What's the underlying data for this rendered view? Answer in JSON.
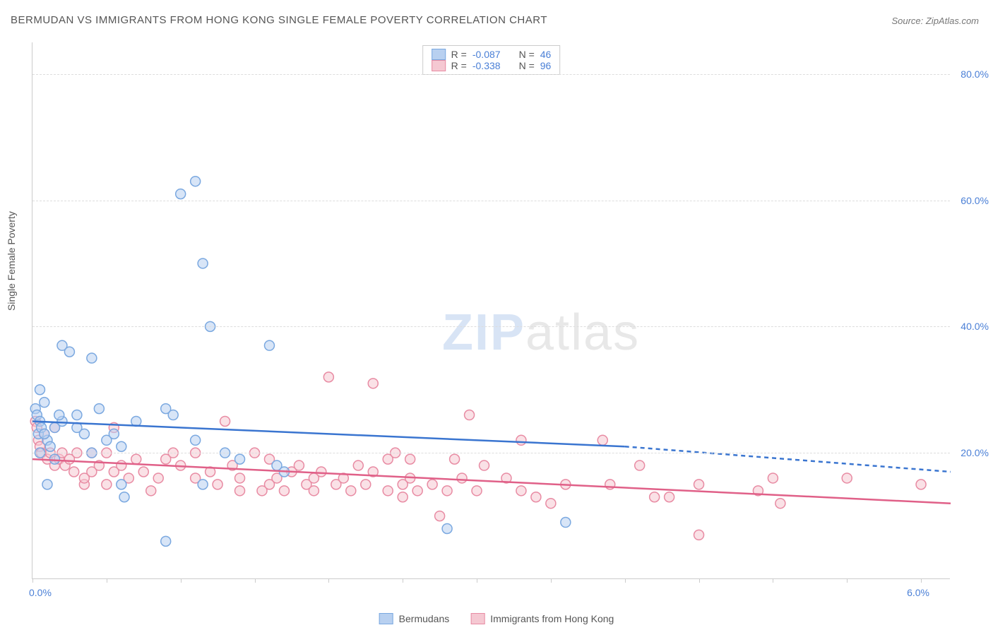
{
  "title": "BERMUDAN VS IMMIGRANTS FROM HONG KONG SINGLE FEMALE POVERTY CORRELATION CHART",
  "source": "Source: ZipAtlas.com",
  "watermark": {
    "bold": "ZIP",
    "rest": "atlas"
  },
  "y_axis_label": "Single Female Poverty",
  "chart": {
    "type": "scatter",
    "background_color": "#ffffff",
    "grid_color": "#dddddd",
    "axis_color": "#cccccc",
    "tick_label_color": "#4a7fd6",
    "text_color": "#555555",
    "xlim": [
      0,
      6.2
    ],
    "ylim": [
      0,
      85
    ],
    "x_ticks": [
      0,
      0.5,
      1.0,
      1.5,
      2.0,
      2.5,
      3.0,
      3.5,
      4.0,
      4.5,
      5.0,
      5.5,
      6.0
    ],
    "x_tick_labels_shown": {
      "0": "0.0%",
      "6.0": "6.0%"
    },
    "y_ticks": [
      20,
      40,
      60,
      80
    ],
    "y_tick_labels": [
      "20.0%",
      "40.0%",
      "60.0%",
      "80.0%"
    ],
    "marker_radius": 7,
    "marker_stroke_width": 1.5,
    "line_width": 2.5,
    "title_fontsize": 15,
    "label_fontsize": 14
  },
  "series": [
    {
      "name": "Bermudans",
      "color_fill": "#b8d0f0",
      "color_stroke": "#7aa8e0",
      "line_color": "#3a75d0",
      "R": "-0.087",
      "N": "46",
      "trend": {
        "x1": 0,
        "y1": 25,
        "x2": 4.0,
        "y2": 21,
        "x1_dash": 4.0,
        "y1_dash": 21,
        "x2_dash": 6.2,
        "y2_dash": 17
      },
      "points": [
        [
          0.02,
          27
        ],
        [
          0.03,
          26
        ],
        [
          0.04,
          23
        ],
        [
          0.05,
          25
        ],
        [
          0.06,
          24
        ],
        [
          0.05,
          30
        ],
        [
          0.1,
          22
        ],
        [
          0.12,
          21
        ],
        [
          0.15,
          24
        ],
        [
          0.08,
          28
        ],
        [
          0.1,
          15
        ],
        [
          0.2,
          37
        ],
        [
          0.25,
          36
        ],
        [
          0.2,
          25
        ],
        [
          0.3,
          26
        ],
        [
          0.35,
          23
        ],
        [
          0.4,
          35
        ],
        [
          0.5,
          22
        ],
        [
          0.55,
          23
        ],
        [
          0.6,
          21
        ],
        [
          0.6,
          15
        ],
        [
          0.62,
          13
        ],
        [
          0.7,
          25
        ],
        [
          0.9,
          27
        ],
        [
          0.9,
          6
        ],
        [
          0.95,
          26
        ],
        [
          1.0,
          61
        ],
        [
          1.1,
          22
        ],
        [
          1.15,
          15
        ],
        [
          1.15,
          50
        ],
        [
          1.1,
          63
        ],
        [
          1.2,
          40
        ],
        [
          1.3,
          20
        ],
        [
          1.4,
          19
        ],
        [
          1.6,
          37
        ],
        [
          1.65,
          18
        ],
        [
          1.7,
          17
        ],
        [
          2.8,
          8
        ],
        [
          3.6,
          9
        ],
        [
          0.05,
          20
        ],
        [
          0.3,
          24
        ],
        [
          0.4,
          20
        ],
        [
          0.15,
          19
        ],
        [
          0.45,
          27
        ],
        [
          0.08,
          23
        ],
        [
          0.18,
          26
        ]
      ]
    },
    {
      "name": "Immigrants from Hong Kong",
      "color_fill": "#f5c8d2",
      "color_stroke": "#e88ba3",
      "line_color": "#e06088",
      "R": "-0.338",
      "N": "96",
      "trend": {
        "x1": 0,
        "y1": 19,
        "x2": 6.2,
        "y2": 12
      },
      "points": [
        [
          0.02,
          25
        ],
        [
          0.03,
          24
        ],
        [
          0.04,
          22
        ],
        [
          0.05,
          21
        ],
        [
          0.06,
          20
        ],
        [
          0.08,
          23
        ],
        [
          0.1,
          19
        ],
        [
          0.12,
          20
        ],
        [
          0.15,
          18
        ],
        [
          0.15,
          24
        ],
        [
          0.18,
          19
        ],
        [
          0.2,
          20
        ],
        [
          0.22,
          18
        ],
        [
          0.25,
          19
        ],
        [
          0.28,
          17
        ],
        [
          0.3,
          20
        ],
        [
          0.35,
          15
        ],
        [
          0.35,
          16
        ],
        [
          0.4,
          20
        ],
        [
          0.4,
          17
        ],
        [
          0.45,
          18
        ],
        [
          0.5,
          20
        ],
        [
          0.5,
          15
        ],
        [
          0.55,
          17
        ],
        [
          0.55,
          24
        ],
        [
          0.6,
          18
        ],
        [
          0.65,
          16
        ],
        [
          0.7,
          19
        ],
        [
          0.75,
          17
        ],
        [
          0.8,
          14
        ],
        [
          0.85,
          16
        ],
        [
          0.9,
          19
        ],
        [
          0.95,
          20
        ],
        [
          1.0,
          18
        ],
        [
          1.1,
          16
        ],
        [
          1.1,
          20
        ],
        [
          1.2,
          17
        ],
        [
          1.25,
          15
        ],
        [
          1.3,
          25
        ],
        [
          1.35,
          18
        ],
        [
          1.4,
          16
        ],
        [
          1.4,
          14
        ],
        [
          1.5,
          20
        ],
        [
          1.55,
          14
        ],
        [
          1.6,
          15
        ],
        [
          1.6,
          19
        ],
        [
          1.65,
          16
        ],
        [
          1.7,
          14
        ],
        [
          1.75,
          17
        ],
        [
          1.8,
          18
        ],
        [
          1.85,
          15
        ],
        [
          1.9,
          16
        ],
        [
          1.9,
          14
        ],
        [
          1.95,
          17
        ],
        [
          2.0,
          32
        ],
        [
          2.05,
          15
        ],
        [
          2.1,
          16
        ],
        [
          2.15,
          14
        ],
        [
          2.2,
          18
        ],
        [
          2.25,
          15
        ],
        [
          2.3,
          17
        ],
        [
          2.3,
          31
        ],
        [
          2.4,
          14
        ],
        [
          2.4,
          19
        ],
        [
          2.45,
          20
        ],
        [
          2.5,
          13
        ],
        [
          2.5,
          15
        ],
        [
          2.55,
          19
        ],
        [
          2.55,
          16
        ],
        [
          2.6,
          14
        ],
        [
          2.7,
          15
        ],
        [
          2.75,
          10
        ],
        [
          2.8,
          14
        ],
        [
          2.85,
          19
        ],
        [
          2.9,
          16
        ],
        [
          2.95,
          26
        ],
        [
          3.0,
          14
        ],
        [
          3.05,
          18
        ],
        [
          3.2,
          16
        ],
        [
          3.3,
          14
        ],
        [
          3.3,
          22
        ],
        [
          3.4,
          13
        ],
        [
          3.5,
          12
        ],
        [
          3.6,
          15
        ],
        [
          3.85,
          22
        ],
        [
          3.9,
          15
        ],
        [
          4.1,
          18
        ],
        [
          4.2,
          13
        ],
        [
          4.3,
          13
        ],
        [
          4.5,
          15
        ],
        [
          4.5,
          7
        ],
        [
          4.9,
          14
        ],
        [
          5.0,
          16
        ],
        [
          5.05,
          12
        ],
        [
          5.5,
          16
        ],
        [
          6.0,
          15
        ]
      ]
    }
  ],
  "legend": {
    "top": {
      "r_label": "R =",
      "n_label": "N ="
    },
    "bottom": [
      {
        "label": "Bermudans",
        "fill": "#b8d0f0",
        "stroke": "#7aa8e0"
      },
      {
        "label": "Immigrants from Hong Kong",
        "fill": "#f5c8d2",
        "stroke": "#e88ba3"
      }
    ]
  }
}
